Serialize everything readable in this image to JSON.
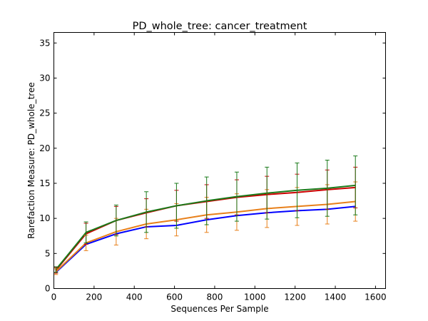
{
  "chart_data": {
    "type": "line",
    "title": "PD_whole_tree: cancer_treatment",
    "xlabel": "Sequences Per Sample",
    "ylabel": "Rarefaction Measure: PD_whole_tree",
    "xlim": [
      0,
      1650
    ],
    "ylim": [
      0,
      36.5
    ],
    "xticks": [
      0,
      200,
      400,
      600,
      800,
      1000,
      1200,
      1400,
      1600
    ],
    "yticks": [
      0,
      5,
      10,
      15,
      20,
      25,
      30,
      35
    ],
    "grid": false,
    "x": [
      10,
      160,
      310,
      460,
      610,
      760,
      910,
      1060,
      1210,
      1360,
      1500
    ],
    "series": [
      {
        "color": "#0000ff",
        "values": [
          2.3,
          6.3,
          7.8,
          8.8,
          9.0,
          9.8,
          10.4,
          10.8,
          11.1,
          11.3,
          11.7
        ],
        "err": [
          0,
          0,
          0,
          0,
          0,
          0,
          0,
          0,
          0,
          0,
          0
        ]
      },
      {
        "color": "#e8801a",
        "values": [
          2.4,
          6.5,
          8.1,
          9.2,
          9.8,
          10.5,
          10.9,
          11.4,
          11.7,
          12.0,
          12.4
        ],
        "err": [
          0.4,
          1.1,
          1.9,
          2.1,
          2.3,
          2.5,
          2.6,
          2.7,
          2.7,
          2.8,
          2.8
        ]
      },
      {
        "color": "#cc0000",
        "values": [
          2.6,
          7.8,
          9.7,
          10.8,
          11.8,
          12.4,
          13.0,
          13.4,
          13.7,
          14.1,
          14.4
        ],
        "err": [
          0.4,
          1.5,
          2.0,
          2.0,
          2.2,
          2.4,
          2.5,
          2.6,
          2.6,
          2.8,
          2.9
        ]
      },
      {
        "color": "#1a7a1a",
        "values": [
          2.7,
          8.0,
          9.7,
          10.9,
          11.8,
          12.5,
          13.1,
          13.6,
          14.0,
          14.3,
          14.7
        ],
        "err": [
          0.4,
          1.5,
          2.2,
          2.9,
          3.2,
          3.4,
          3.5,
          3.7,
          3.9,
          4.0,
          4.2
        ]
      }
    ]
  }
}
